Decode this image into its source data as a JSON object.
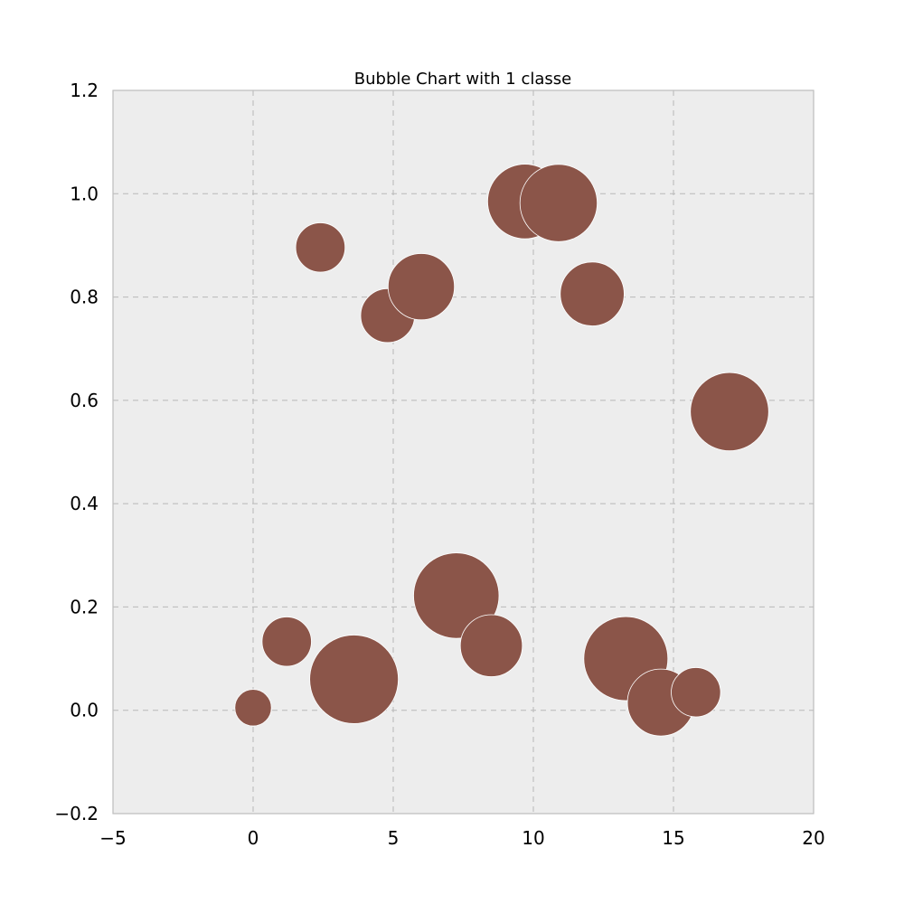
{
  "chart_data": {
    "type": "scatter",
    "title": "Bubble Chart with 1 classe",
    "xlabel": "",
    "ylabel": "",
    "xlim": [
      -5,
      20
    ],
    "ylim": [
      -0.2,
      1.2
    ],
    "xticks": [
      -5,
      0,
      5,
      10,
      15,
      20
    ],
    "yticks": [
      -0.2,
      0.0,
      0.2,
      0.4,
      0.6,
      0.8,
      1.0,
      1.2
    ],
    "xtick_labels": [
      "−5",
      "0",
      "5",
      "10",
      "15",
      "20"
    ],
    "ytick_labels": [
      "−0.2",
      "0.0",
      "0.2",
      "0.4",
      "0.6",
      "0.8",
      "1.0",
      "1.2"
    ],
    "grid": true,
    "legend": "none",
    "bubble_color": "#8b5549",
    "plot_background": "#ededed",
    "points": [
      {
        "x": 0.0,
        "y": 0.005,
        "size": 0.17
      },
      {
        "x": 1.2,
        "y": 0.133,
        "size": 0.31
      },
      {
        "x": 2.4,
        "y": 0.896,
        "size": 0.31
      },
      {
        "x": 3.6,
        "y": 0.06,
        "size": 1.0
      },
      {
        "x": 4.8,
        "y": 0.764,
        "size": 0.37
      },
      {
        "x": 6.0,
        "y": 0.82,
        "size": 0.56
      },
      {
        "x": 7.25,
        "y": 0.222,
        "size": 0.93
      },
      {
        "x": 8.5,
        "y": 0.125,
        "size": 0.49
      },
      {
        "x": 9.7,
        "y": 0.985,
        "size": 0.71
      },
      {
        "x": 10.9,
        "y": 0.982,
        "size": 0.76
      },
      {
        "x": 12.1,
        "y": 0.806,
        "size": 0.52
      },
      {
        "x": 13.3,
        "y": 0.1,
        "size": 0.9
      },
      {
        "x": 14.55,
        "y": 0.015,
        "size": 0.57
      },
      {
        "x": 15.8,
        "y": 0.035,
        "size": 0.31
      },
      {
        "x": 17.0,
        "y": 0.578,
        "size": 0.78
      }
    ]
  }
}
